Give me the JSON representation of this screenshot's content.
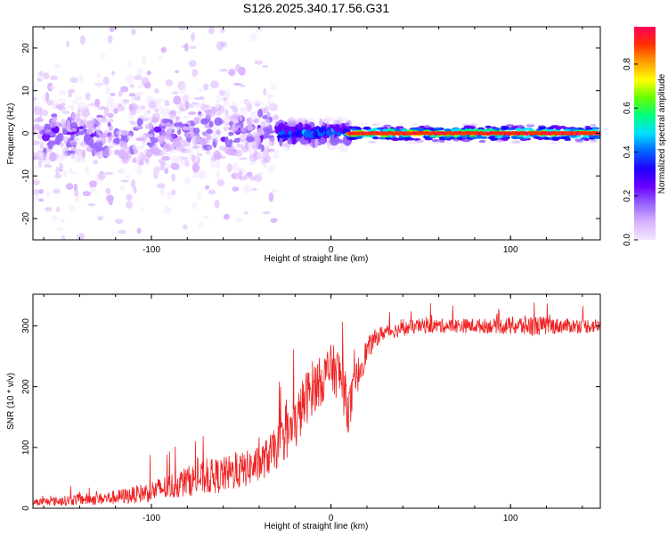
{
  "title": "S126.2025.340.17.56.G31",
  "chart_data": [
    {
      "type": "heatmap",
      "xlabel": "Height of straight line (km)",
      "ylabel": "Frequency (Hz)",
      "xlim": [
        -166,
        150
      ],
      "ylim": [
        -25,
        25
      ],
      "xticks": [
        {
          "v": -100,
          "t": "-100"
        },
        {
          "v": 0,
          "t": "0"
        },
        {
          "v": 100,
          "t": "100"
        }
      ],
      "yticks": [
        {
          "v": 20,
          "t": "20"
        },
        {
          "v": 10,
          "t": "10"
        },
        {
          "v": 0,
          "t": "0"
        },
        {
          "v": -10,
          "t": "-10"
        },
        {
          "v": -20,
          "t": "-20"
        }
      ],
      "colorbar": {
        "label": "Normalized spectral amplitude",
        "range": [
          0,
          0.97
        ],
        "ticks": [
          {
            "v": 0,
            "t": "0.0"
          },
          {
            "v": 0.2,
            "t": "0.2"
          },
          {
            "v": 0.4,
            "t": "0.4"
          },
          {
            "v": 0.6,
            "t": "0.6"
          },
          {
            "v": 0.8,
            "t": "0.8"
          }
        ],
        "colors": [
          "#f2e6ff",
          "#d9b3ff",
          "#9966ff",
          "#6a00ff",
          "#2000ff",
          "#0066ff",
          "#00e0ff",
          "#00ff80",
          "#66ff00",
          "#ffff00",
          "#ffa000",
          "#ff3000",
          "#ff0060"
        ]
      },
      "regions": [
        {
          "x": [
            -166,
            -30
          ],
          "center_freq": 0,
          "spread_hz": 6,
          "amplitude": 0.25,
          "description": "scattered broadband"
        },
        {
          "x": [
            -30,
            10
          ],
          "center_freq": 0,
          "spread_hz": 1.5,
          "amplitude": 0.5
        },
        {
          "x": [
            10,
            150
          ],
          "center_freq": 0,
          "spread_hz": 1,
          "amplitude": 0.9
        }
      ]
    },
    {
      "type": "line",
      "xlabel": "Height of straight line (km)",
      "ylabel": "SNR (10 * v/v)",
      "xlim": [
        -166,
        150
      ],
      "ylim": [
        0,
        352
      ],
      "xticks": [
        {
          "v": -100,
          "t": "-100"
        },
        {
          "v": 0,
          "t": "0"
        },
        {
          "v": 100,
          "t": "100"
        }
      ],
      "yticks": [
        {
          "v": 0,
          "t": "0"
        },
        {
          "v": 100,
          "t": "100"
        },
        {
          "v": 200,
          "t": "200"
        },
        {
          "v": 300,
          "t": "300"
        }
      ],
      "color": "#ee2222",
      "series": [
        {
          "name": "SNR",
          "x": [
            -166,
            -150,
            -140,
            -130,
            -120,
            -110,
            -100,
            -90,
            -80,
            -70,
            -60,
            -50,
            -40,
            -30,
            -25,
            -20,
            -15,
            -10,
            -5,
            0,
            5,
            10,
            15,
            20,
            25,
            30,
            40,
            50,
            60,
            70,
            80,
            90,
            100,
            110,
            120,
            130,
            140,
            150
          ],
          "y": [
            10,
            12,
            15,
            15,
            18,
            22,
            28,
            35,
            45,
            50,
            55,
            62,
            72,
            100,
            120,
            135,
            175,
            200,
            210,
            230,
            220,
            160,
            220,
            260,
            280,
            290,
            295,
            300,
            300,
            300,
            300,
            300,
            300,
            300,
            300,
            300,
            300,
            300
          ],
          "noise": [
            6,
            8,
            10,
            10,
            12,
            14,
            18,
            22,
            25,
            28,
            30,
            30,
            30,
            35,
            40,
            45,
            45,
            45,
            40,
            40,
            45,
            40,
            30,
            20,
            15,
            12,
            12,
            12,
            12,
            12,
            12,
            12,
            15,
            18,
            15,
            12,
            12,
            12
          ]
        }
      ]
    }
  ]
}
